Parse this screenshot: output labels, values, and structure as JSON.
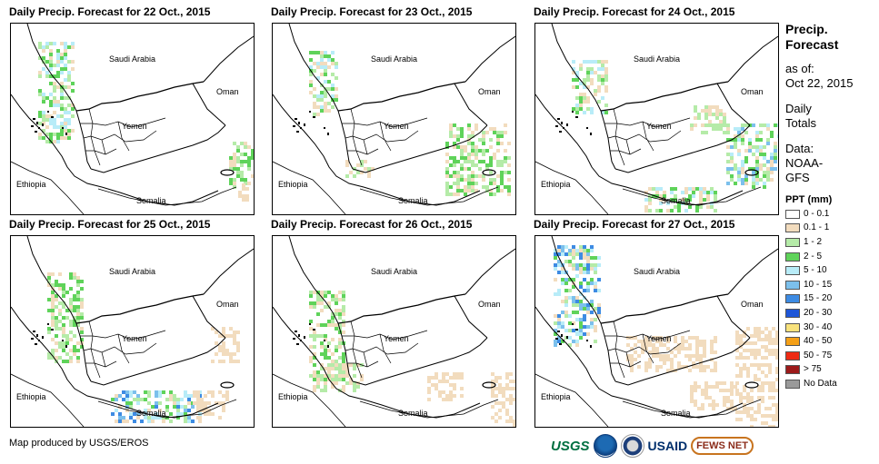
{
  "panels": [
    {
      "title": "Daily Precip. Forecast for 22 Oct., 2015"
    },
    {
      "title": "Daily Precip. Forecast for 23 Oct., 2015"
    },
    {
      "title": "Daily Precip. Forecast for 24 Oct., 2015"
    },
    {
      "title": "Daily Precip. Forecast for 25 Oct., 2015"
    },
    {
      "title": "Daily Precip. Forecast for 26 Oct., 2015"
    },
    {
      "title": "Daily Precip. Forecast for 27 Oct., 2015"
    }
  ],
  "map_labels": {
    "saudi": "Saudi Arabia",
    "oman": "Oman",
    "yemen": "Yemen",
    "ethiopia": "Ethiopia",
    "somalia": "Somalia"
  },
  "sidebar": {
    "title_line1": "Precip.",
    "title_line2": "Forecast",
    "asof_label": "as of:",
    "asof_date": "Oct 22, 2015",
    "daily_line1": "Daily",
    "daily_line2": "Totals",
    "data_label": "Data:",
    "data_line1": "NOAA-",
    "data_line2": "GFS"
  },
  "legend": {
    "title": "PPT (mm)",
    "items": [
      {
        "label": "0 - 0.1",
        "color": "#ffffff"
      },
      {
        "label": "0.1 - 1",
        "color": "#f2dcbe"
      },
      {
        "label": "1 - 2",
        "color": "#b5eba8"
      },
      {
        "label": "2 - 5",
        "color": "#5fd35a"
      },
      {
        "label": "5 - 10",
        "color": "#b8ecf8"
      },
      {
        "label": "10 - 15",
        "color": "#7cc0ec"
      },
      {
        "label": "15 - 20",
        "color": "#3d8be3"
      },
      {
        "label": "20 - 30",
        "color": "#1e56d8"
      },
      {
        "label": "30 - 40",
        "color": "#f8e27c"
      },
      {
        "label": "40 - 50",
        "color": "#f5a017"
      },
      {
        "label": "50 - 75",
        "color": "#ee2a13"
      },
      {
        "label": "> 75",
        "color": "#9c1a1a"
      },
      {
        "label": "No Data",
        "color": "#9a9a9a"
      }
    ]
  },
  "credit": "Map produced by USGS/EROS",
  "logos": {
    "usgs": "USGS",
    "usaid": "USAID",
    "fews": "FEWS NET"
  }
}
